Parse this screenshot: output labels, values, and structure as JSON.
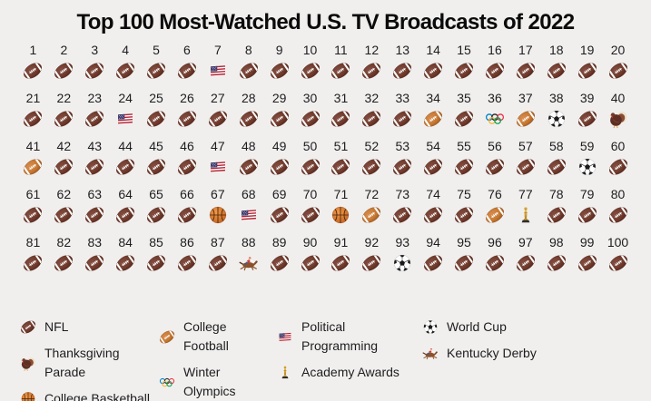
{
  "title": "Top 100 Most-Watched U.S. TV Broadcasts of 2022",
  "chart_data": {
    "type": "pictogram",
    "title": "Top 100 Most-Watched U.S. TV Broadcasts of 2022",
    "rank_start": 1,
    "rank_end": 100,
    "layout": "5 rows x 20 columns, ranks numbered above each icon",
    "default_category": "NFL",
    "category_ranks": {
      "Political Programming": [
        7,
        24,
        47,
        68
      ],
      "College Football": [
        34,
        37,
        41,
        72,
        76
      ],
      "Winter Olympics": [
        36
      ],
      "World Cup": [
        38,
        59,
        93
      ],
      "Thanksgiving Parade": [
        40
      ],
      "College Basketball": [
        67,
        71
      ],
      "Academy Awards": [
        77
      ],
      "Kentucky Derby": [
        88
      ],
      "NFL": "all remaining ranks 1-100"
    },
    "counts": {
      "NFL": 82,
      "College Football": 5,
      "Political Programming": 4,
      "World Cup": 3,
      "College Basketball": 2,
      "Winter Olympics": 1,
      "Thanksgiving Parade": 1,
      "Academy Awards": 1,
      "Kentucky Derby": 1
    },
    "legend_position": "bottom"
  },
  "icon_map": {
    "NFL": "nfl-football",
    "College Football": "college-football",
    "Political Programming": "us-flag",
    "Winter Olympics": "olympic-rings",
    "World Cup": "soccer-ball",
    "Thanksgiving Parade": "turkey",
    "College Basketball": "basketball",
    "Academy Awards": "oscar-statuette",
    "Kentucky Derby": "horse-racing"
  },
  "legend": {
    "columns": [
      {
        "items": [
          {
            "category": "NFL"
          },
          {
            "category": "Thanksgiving Parade"
          },
          {
            "category": "College Basketball"
          }
        ]
      },
      {
        "items": [
          {
            "category": "College Football"
          },
          {
            "category": "Winter Olympics"
          }
        ]
      },
      {
        "items": [
          {
            "category": "Political Programming"
          },
          {
            "category": "Academy Awards"
          }
        ]
      },
      {
        "items": [
          {
            "category": "World Cup"
          },
          {
            "category": "Kentucky Derby"
          }
        ]
      }
    ]
  },
  "colors": {
    "background": "#f1efed",
    "title_text": "#0b0b0b",
    "number_text": "#1d1d1f",
    "nfl_football": "#6f3a2c",
    "college_football": "#c5772f",
    "flag_red": "#b22234",
    "flag_blue": "#3c3b6e",
    "ring_blue": "#0081c8",
    "ring_black": "#2b2b2b",
    "ring_red": "#ee334e",
    "ring_yellow": "#fcb131",
    "ring_green": "#00a651",
    "basketball_orange": "#e08434",
    "oscar_gold": "#e0af35"
  }
}
